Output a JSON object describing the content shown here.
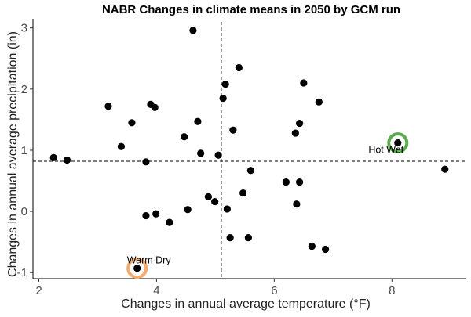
{
  "chart_data": {
    "type": "scatter",
    "title": "NABR Changes in climate means in 2050 by GCM run",
    "xlabel": "Changes in annual average temperature (°F)",
    "ylabel": "Changes in annual average precipitation (in)",
    "xlim": [
      1.9,
      9.25
    ],
    "ylim": [
      -1.1,
      3.15
    ],
    "x_ticks": [
      2,
      4,
      6,
      8
    ],
    "y_ticks": [
      -1,
      0,
      1,
      2,
      3
    ],
    "grid": false,
    "reference_lines": {
      "vertical_x": 5.1,
      "horizontal_y": 0.82
    },
    "point_color": "#000000",
    "points": [
      {
        "x": 2.25,
        "y": 0.88
      },
      {
        "x": 2.48,
        "y": 0.84
      },
      {
        "x": 3.18,
        "y": 1.72
      },
      {
        "x": 3.4,
        "y": 1.06
      },
      {
        "x": 3.58,
        "y": 1.45
      },
      {
        "x": 3.82,
        "y": 0.81
      },
      {
        "x": 3.82,
        "y": -0.07
      },
      {
        "x": 3.9,
        "y": 1.75
      },
      {
        "x": 3.97,
        "y": 1.7
      },
      {
        "x": 3.99,
        "y": -0.04
      },
      {
        "x": 4.22,
        "y": -0.18
      },
      {
        "x": 4.47,
        "y": 1.22
      },
      {
        "x": 4.53,
        "y": 0.03
      },
      {
        "x": 4.62,
        "y": 2.96
      },
      {
        "x": 4.7,
        "y": 1.47
      },
      {
        "x": 4.75,
        "y": 0.95
      },
      {
        "x": 4.88,
        "y": 0.24
      },
      {
        "x": 4.99,
        "y": 0.16
      },
      {
        "x": 5.05,
        "y": 0.92
      },
      {
        "x": 5.13,
        "y": 1.85
      },
      {
        "x": 5.17,
        "y": 2.08
      },
      {
        "x": 5.2,
        "y": 0.04
      },
      {
        "x": 5.25,
        "y": -0.43
      },
      {
        "x": 5.3,
        "y": 1.33
      },
      {
        "x": 5.4,
        "y": 2.35
      },
      {
        "x": 5.47,
        "y": 0.3
      },
      {
        "x": 5.56,
        "y": -0.43
      },
      {
        "x": 5.6,
        "y": 0.67
      },
      {
        "x": 6.2,
        "y": 0.48
      },
      {
        "x": 6.36,
        "y": 1.28
      },
      {
        "x": 6.38,
        "y": 0.12
      },
      {
        "x": 6.43,
        "y": 0.48
      },
      {
        "x": 6.43,
        "y": 1.44
      },
      {
        "x": 6.5,
        "y": 2.1
      },
      {
        "x": 6.64,
        "y": -0.57
      },
      {
        "x": 6.76,
        "y": 1.79
      },
      {
        "x": 6.87,
        "y": -0.62
      },
      {
        "x": 8.1,
        "y": 1.12
      },
      {
        "x": 8.9,
        "y": 0.69
      },
      {
        "x": 3.67,
        "y": -0.93
      }
    ],
    "highlights": [
      {
        "label": "Hot Wet",
        "x": 8.1,
        "y": 1.12,
        "ring_color": "#5cab4f"
      },
      {
        "label": "Warm Dry",
        "x": 3.67,
        "y": -0.93,
        "ring_color": "#f4ab6c"
      }
    ]
  }
}
